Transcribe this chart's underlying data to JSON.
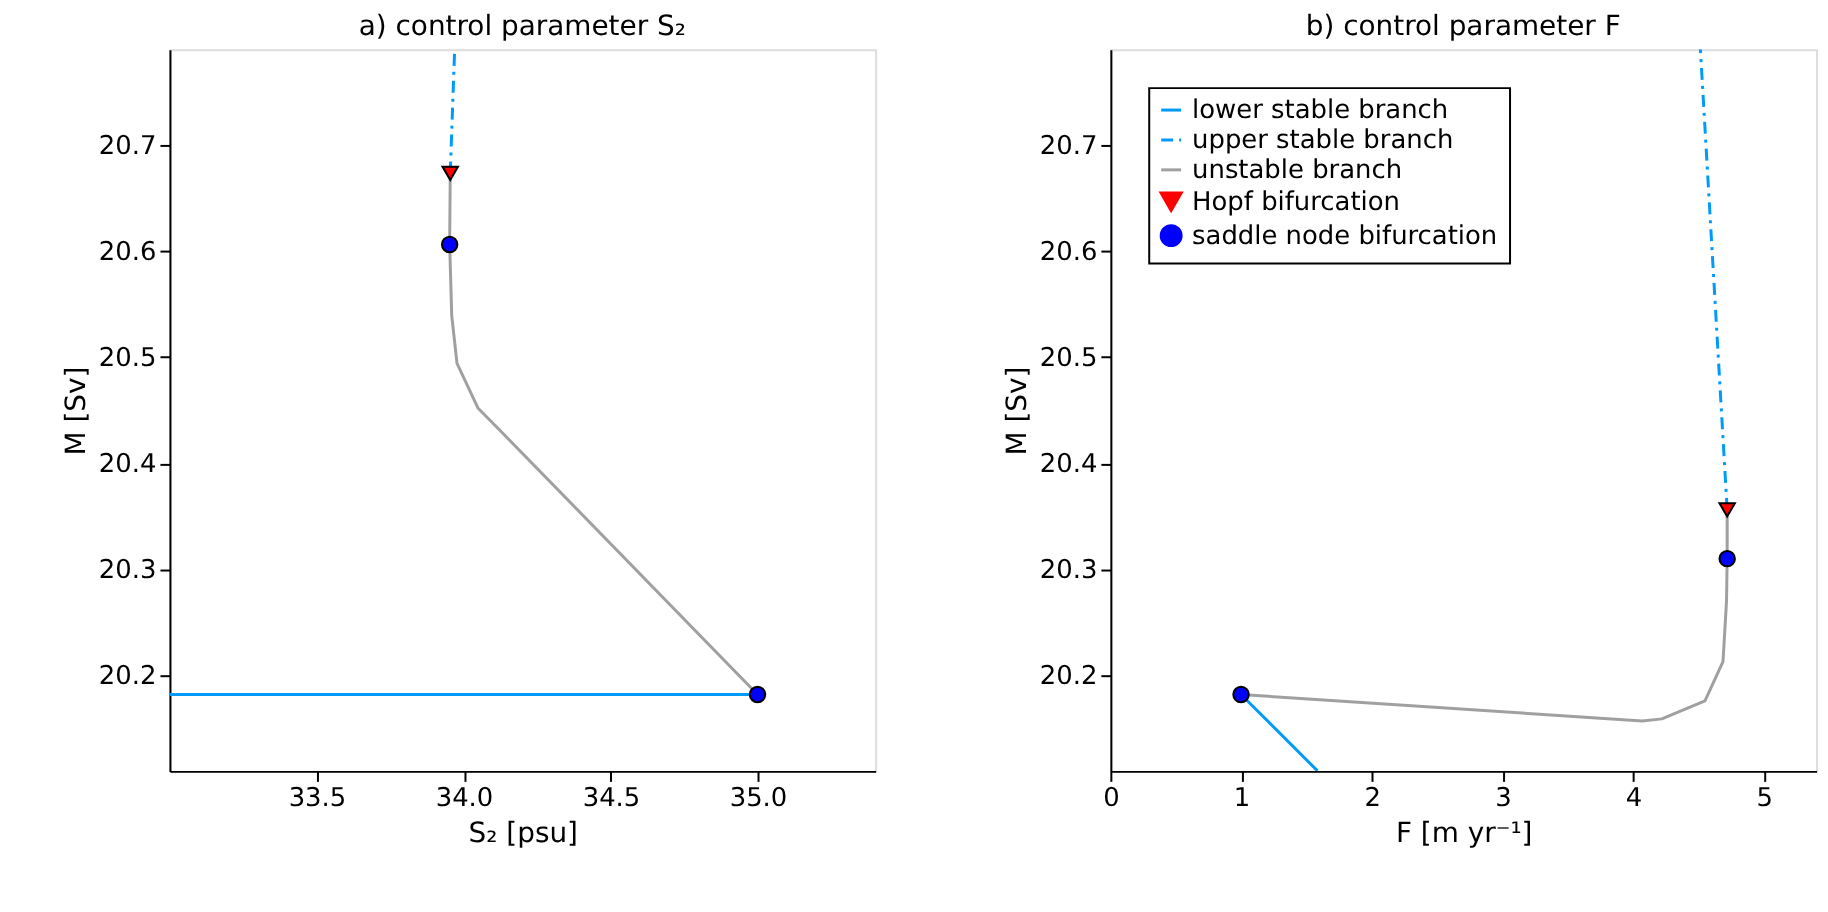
{
  "chart_data": [
    {
      "type": "line",
      "title": "a) control parameter S₂",
      "xlabel": "S₂ [psu]",
      "ylabel": "M [Sv]",
      "xlim": [
        33.0,
        35.4
      ],
      "xticks": [
        {
          "value": 33.5,
          "label": "33.5"
        },
        {
          "value": 34.0,
          "label": "34.0"
        },
        {
          "value": 34.5,
          "label": "34.5"
        },
        {
          "value": 35.0,
          "label": "35.0"
        }
      ],
      "ylim": [
        20.11,
        20.79
      ],
      "yticks": [
        20.2,
        20.3,
        20.4,
        20.5,
        20.6,
        20.7
      ],
      "grid": false,
      "legend": false,
      "series": [
        {
          "line_style": "solid",
          "color": "#009afa",
          "x": [
            33.0,
            35.0
          ],
          "values": [
            20.182,
            20.182
          ]
        },
        {
          "line_style": "dashed",
          "color": "#009afa",
          "x": [
            33.955,
            33.97
          ],
          "values": [
            20.673,
            20.79
          ]
        },
        {
          "line_style": "solid",
          "color": "#a0a0a0",
          "x": [
            33.955,
            33.953,
            33.96,
            33.978,
            34.049,
            34.138,
            35.0
          ],
          "values": [
            20.673,
            20.606,
            20.539,
            20.494,
            20.452,
            20.427,
            20.182
          ]
        },
        {
          "type": "scatter",
          "marker": "triangle",
          "color": "#ff0000",
          "x": [
            33.955
          ],
          "values": [
            20.673
          ]
        },
        {
          "type": "scatter",
          "marker": "circle",
          "color": "#0000ff",
          "x": [
            33.953,
            35.0
          ],
          "values": [
            20.606,
            20.182
          ]
        }
      ]
    },
    {
      "type": "line",
      "title": "b) control parameter F",
      "xlabel": "F [m yr⁻¹]",
      "ylabel": "M [Sv]",
      "xlim": [
        0,
        5.4
      ],
      "xticks": [
        0,
        1,
        2,
        3,
        4,
        5
      ],
      "ylim": [
        20.11,
        20.79
      ],
      "yticks": [
        20.2,
        20.3,
        20.4,
        20.5,
        20.6,
        20.7
      ],
      "grid": false,
      "legend": "top left",
      "series": [
        {
          "line_style": "solid",
          "name": "lower stable branch",
          "color": "#009afa",
          "x": [
            1.0,
            1.585
          ],
          "values": [
            20.182,
            20.11
          ]
        },
        {
          "line_style": "dashed",
          "name": "upper stable branch",
          "color": "#009afa",
          "x": [
            4.72,
            4.515
          ],
          "values": [
            20.356,
            20.79
          ]
        },
        {
          "line_style": "solid",
          "name": "unstable branch",
          "color": "#a0a0a0",
          "x": [
            4.72,
            4.72,
            4.715,
            4.688,
            4.55,
            4.22,
            4.07,
            1.0
          ],
          "values": [
            20.356,
            20.31,
            20.27,
            20.213,
            20.176,
            20.159,
            20.157,
            20.182
          ]
        },
        {
          "type": "scatter",
          "marker": "triangle",
          "name": "Hopf bifurcation",
          "color": "#ff0000",
          "x": [
            4.72
          ],
          "values": [
            20.356
          ]
        },
        {
          "type": "scatter",
          "marker": "circle",
          "name": "saddle node bifurcation",
          "color": "#0000ff",
          "x": [
            1.0,
            4.72
          ],
          "values": [
            20.182,
            20.31
          ]
        }
      ]
    }
  ]
}
